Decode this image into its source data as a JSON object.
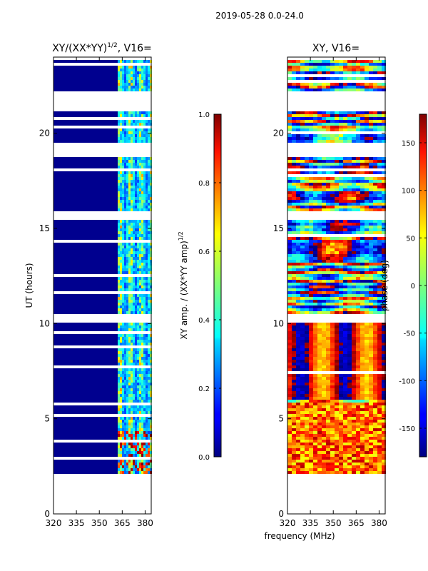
{
  "suptitle": "2019-05-28 0.0-24.0",
  "chart_data": [
    {
      "type": "heatmap",
      "title": "XY/(XX*YY)^1/2, V16=",
      "title_main": "XY/(XX*YY)",
      "title_exp": "1/2",
      "title_tail": ", V16=",
      "xlabel": "",
      "ylabel": "UT (hours)",
      "xlim": [
        320,
        384
      ],
      "ylim": [
        0,
        24
      ],
      "xticks": [
        320,
        335,
        350,
        365,
        380
      ],
      "yticks": [
        0,
        5,
        10,
        15,
        20
      ],
      "data_start_ut": 2.1,
      "colorbar": {
        "label": "XY amp. / (XX*YY amp)^1/2",
        "label_main": "XY amp. / (XX*YY amp)",
        "label_exp": "1/2",
        "range": [
          0.0,
          1.0
        ],
        "ticks": [
          "0.0",
          "0.2",
          "0.4",
          "0.6",
          "0.8",
          "1.0"
        ],
        "tick_values": [
          0.0,
          0.2,
          0.4,
          0.6,
          0.8,
          1.0
        ]
      }
    },
    {
      "type": "heatmap",
      "title": "XY, V16=",
      "xlabel": "frequency (MHz)",
      "ylabel": "",
      "xlim": [
        320,
        384
      ],
      "ylim": [
        0,
        24
      ],
      "xticks": [
        320,
        335,
        350,
        365,
        380
      ],
      "yticks": [
        0,
        5,
        10,
        15,
        20
      ],
      "data_start_ut": 2.1,
      "colorbar": {
        "label": "phase (deg)",
        "range": [
          -180,
          180
        ],
        "ticks": [
          "-150",
          "-100",
          "-50",
          "0",
          "50",
          "100",
          "150"
        ],
        "tick_values": [
          -150,
          -100,
          -50,
          0,
          50,
          100,
          150
        ]
      }
    }
  ]
}
